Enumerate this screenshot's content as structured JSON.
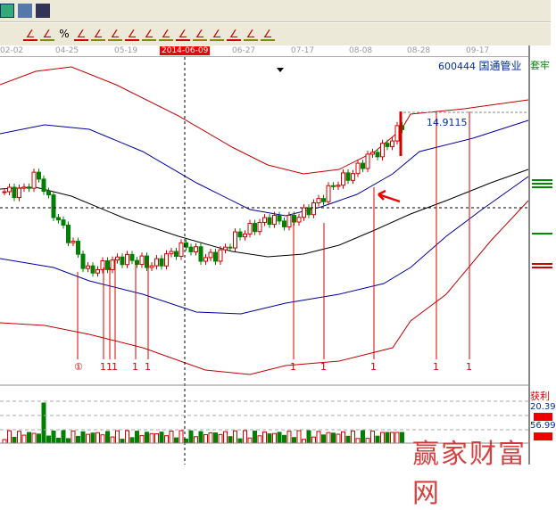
{
  "toolbar": {
    "icons": [
      "save-icon",
      "network-icon",
      "connect-icon"
    ],
    "tools": [
      "bar-chart",
      "percent-red",
      "%",
      "percent-line",
      "gold-circle",
      "gold-line",
      "draw-tool",
      "avg-line",
      "gold-avg",
      "J-line",
      "F-line",
      "gold-fan",
      "fan-1",
      "fan-2",
      "fan-3"
    ],
    "percent_label": "%"
  },
  "dates": [
    "02-02",
    "04-25",
    "05-19",
    "2014-06-09",
    "06-27",
    "07-17",
    "08-08",
    "08-28",
    "09-17"
  ],
  "stock": {
    "code": "600444",
    "name": "国通管业"
  },
  "right_panel": {
    "trapped": "套牢",
    "profit": "获利",
    "value1": "20.39",
    "value2": "56.99"
  },
  "annotation": "14.9115",
  "markers": [
    "①",
    "1",
    "1",
    "1",
    "1",
    "1",
    "1",
    "1",
    "1",
    "1",
    "1"
  ],
  "watermark": "赢家财富网",
  "colors": {
    "up": "#d00000",
    "down": "#008000",
    "mid": "#000000",
    "inner": "#0000a0",
    "outer": "#c00000"
  },
  "chart_data": {
    "type": "candlestick",
    "closes_approx": [
      12.57,
      12.57,
      13.17,
      11.82,
      10.92,
      9.87,
      10.08,
      10.32,
      10.26,
      10.08,
      10.47,
      10.77,
      10.32,
      10.47,
      11.07,
      11.37,
      11.67,
      11.52,
      11.82,
      12.27,
      12.87,
      13.17,
      13.77,
      14.07,
      14.82
    ]
  }
}
